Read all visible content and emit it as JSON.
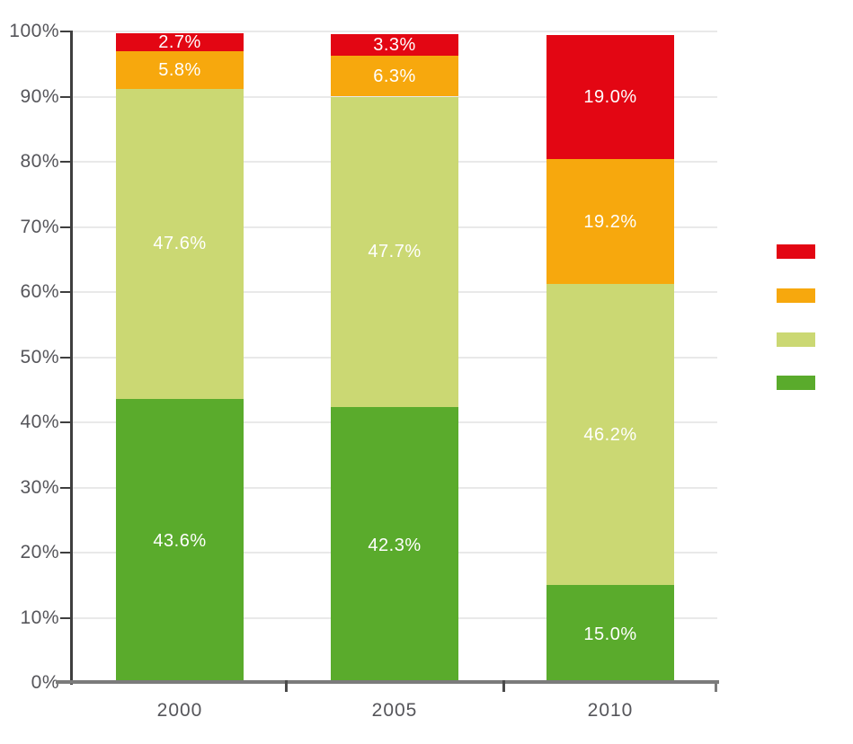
{
  "chart_data": {
    "type": "bar",
    "stacked": true,
    "title": "",
    "xlabel": "",
    "ylabel": "",
    "categories": [
      "2000",
      "2005",
      "2010"
    ],
    "series": [
      {
        "name": "green",
        "color": "#5AAB2C",
        "values": [
          43.6,
          42.3,
          15.0
        ],
        "labels": [
          "43.6%",
          "42.3%",
          "15.0%"
        ]
      },
      {
        "name": "light-green",
        "color": "#CBD873",
        "values": [
          47.6,
          47.7,
          46.2
        ],
        "labels": [
          "47.6%",
          "47.7%",
          "46.2%"
        ]
      },
      {
        "name": "orange",
        "color": "#F7A80D",
        "values": [
          5.8,
          6.3,
          19.2
        ],
        "labels": [
          "5.8%",
          "6.3%",
          "19.2%"
        ]
      },
      {
        "name": "red",
        "color": "#E30613",
        "values": [
          2.7,
          3.3,
          19.0
        ],
        "labels": [
          "2.7%",
          "3.3%",
          "19.0%"
        ]
      }
    ],
    "y_axis": {
      "min": 0,
      "max": 100,
      "step": 10,
      "tick_labels": [
        "0%",
        "10%",
        "20%",
        "30%",
        "40%",
        "50%",
        "60%",
        "70%",
        "80%",
        "90%",
        "100%"
      ]
    },
    "x_axis": {
      "tick_labels": [
        "2000",
        "2005",
        "2010"
      ]
    },
    "grid": true,
    "legend": {
      "position": "right",
      "labels_visible": false,
      "items": [
        {
          "name": "red",
          "color": "#E30613",
          "label": ""
        },
        {
          "name": "orange",
          "color": "#F7A80D",
          "label": ""
        },
        {
          "name": "light-green",
          "color": "#CBD873",
          "label": ""
        },
        {
          "name": "green",
          "color": "#5AAB2C",
          "label": ""
        }
      ]
    },
    "colors": {
      "grid": "#E9E9E9",
      "axis_text": "#55555A",
      "y_axis_line": "#3F3F3F",
      "x_axis_line": "#7B7B7B",
      "x_tick": "#4A4A4A",
      "segment_label_text": "#FFFFFF"
    }
  }
}
